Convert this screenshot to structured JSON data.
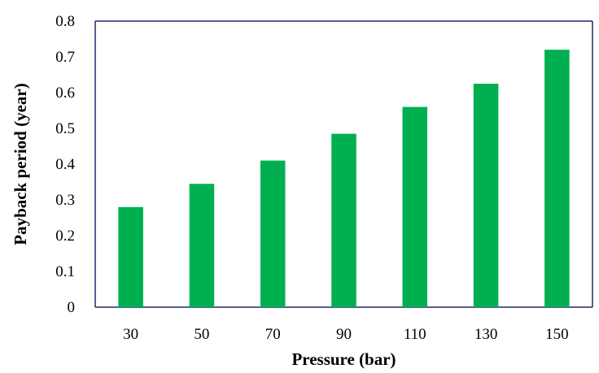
{
  "chart_data": {
    "type": "bar",
    "title": "",
    "xlabel": "Pressure (bar)",
    "ylabel": "Payback period (year)",
    "categories": [
      "30",
      "50",
      "70",
      "90",
      "110",
      "130",
      "150"
    ],
    "values": [
      0.28,
      0.345,
      0.41,
      0.485,
      0.56,
      0.625,
      0.72
    ],
    "ylim": [
      0,
      0.8
    ],
    "yticks": [
      "0",
      "0.1",
      "0.2",
      "0.3",
      "0.4",
      "0.5",
      "0.6",
      "0.7",
      "0.8"
    ],
    "grid": false,
    "legend": "none",
    "colors": {
      "bar": "#00B050",
      "axis": "#1F2A6B",
      "text": "#000000"
    }
  }
}
